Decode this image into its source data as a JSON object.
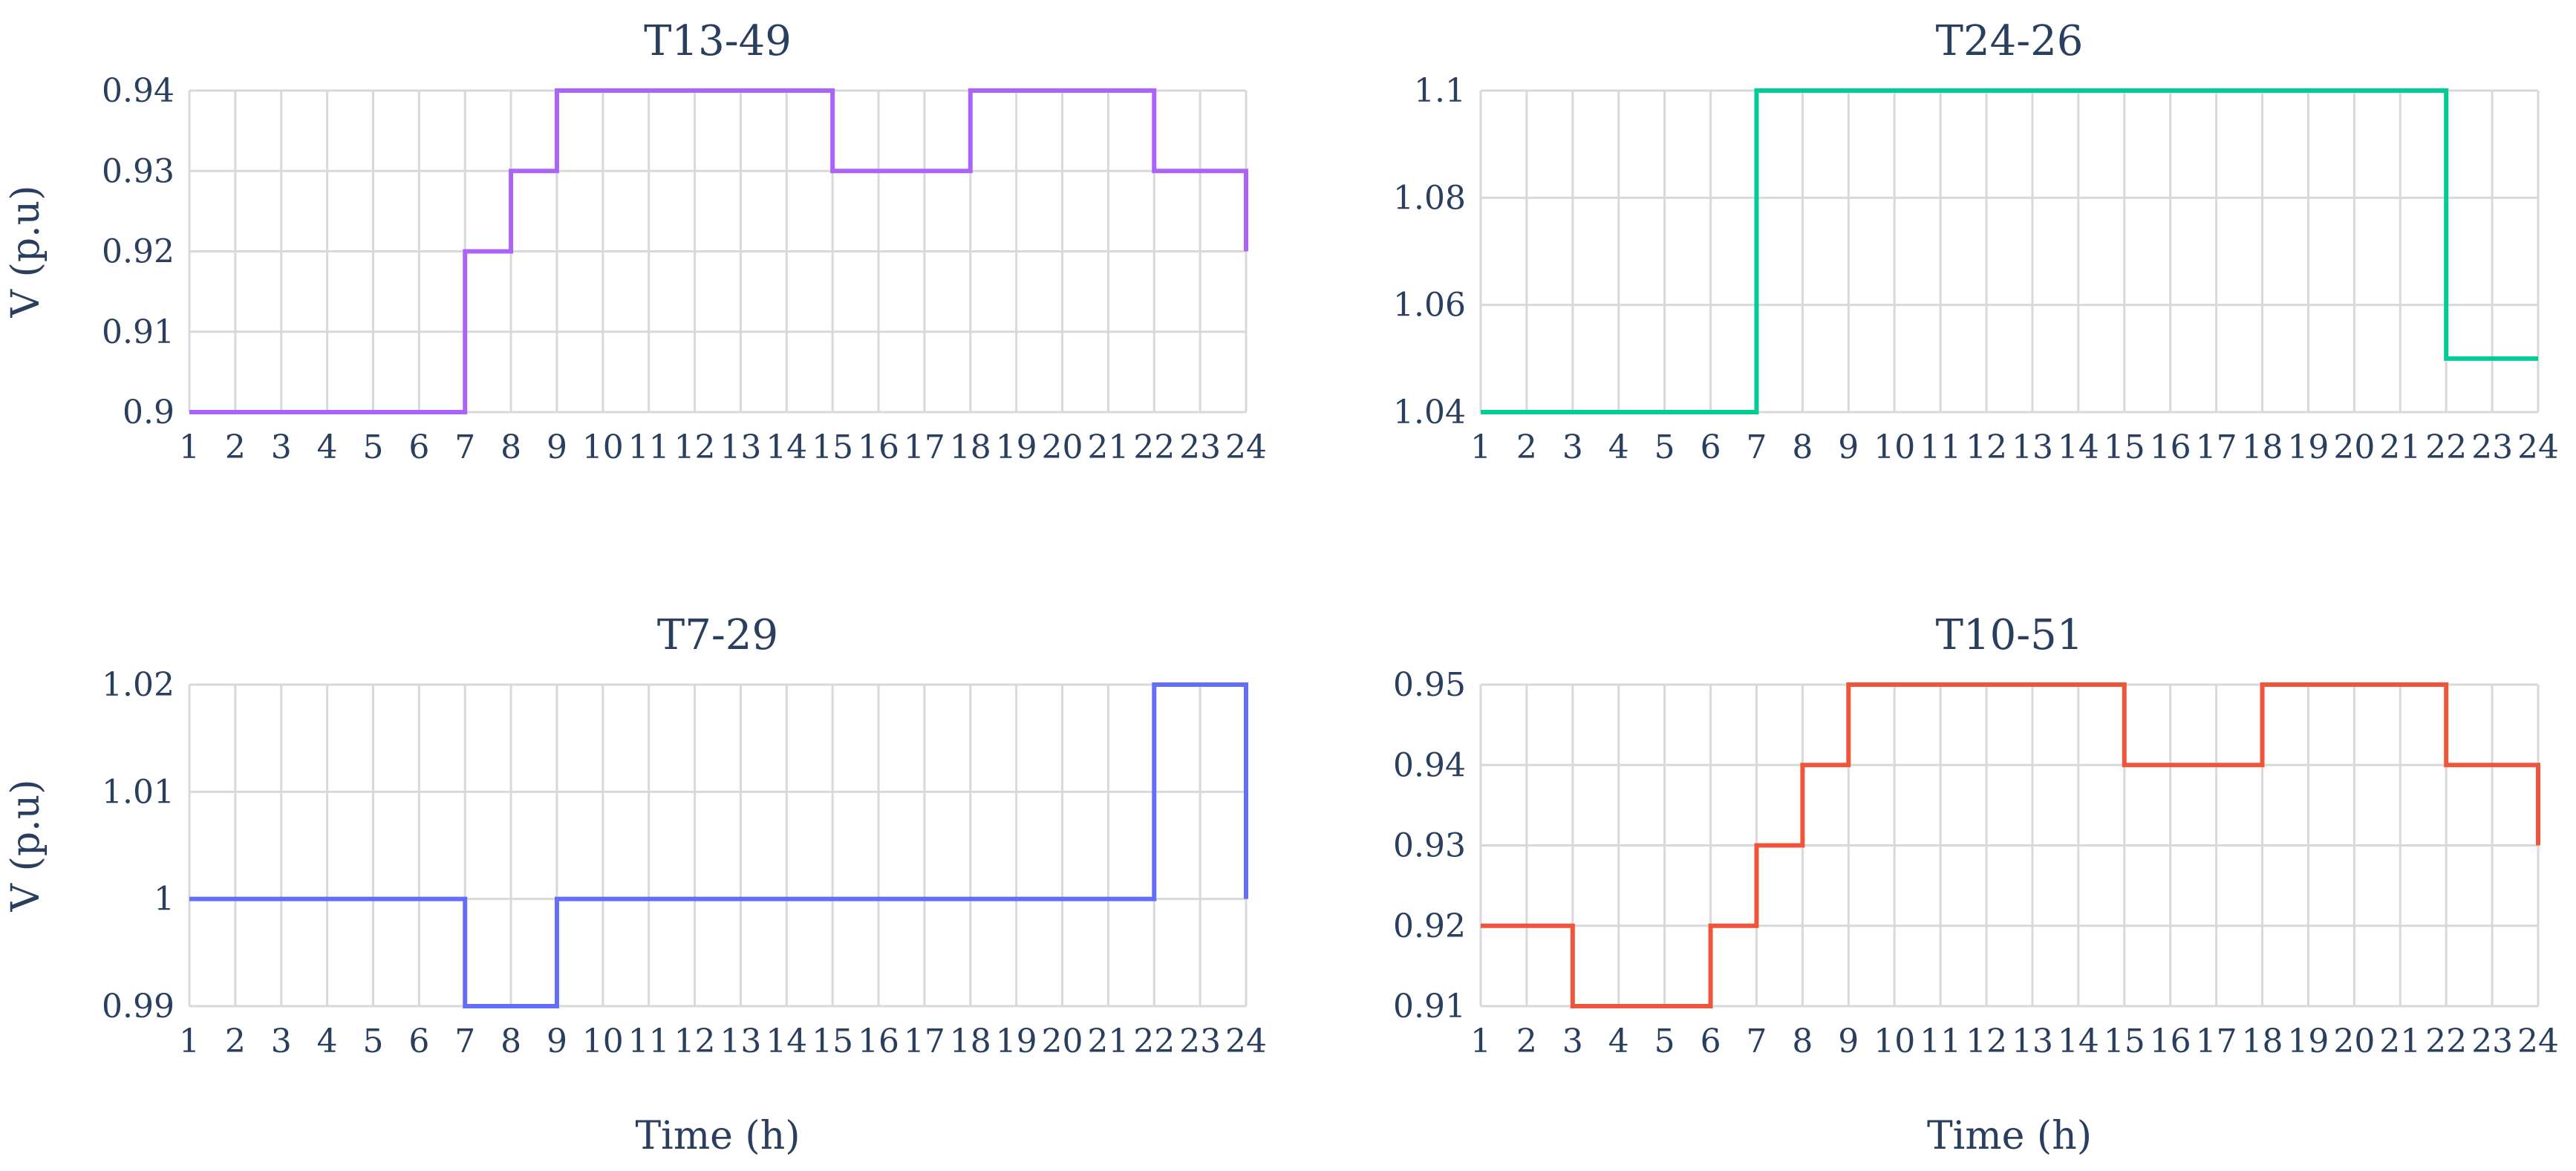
{
  "chart_data": [
    {
      "type": "line",
      "line_shape": "step",
      "title": "T13-49",
      "xlabel": "",
      "ylabel": "V (p.u)",
      "x": [
        1,
        2,
        3,
        4,
        5,
        6,
        7,
        8,
        9,
        10,
        11,
        12,
        13,
        14,
        15,
        16,
        17,
        18,
        19,
        20,
        21,
        22,
        23,
        24
      ],
      "xlim": [
        1,
        24
      ],
      "ylim": [
        0.9,
        0.94
      ],
      "yticks": [
        0.9,
        0.91,
        0.92,
        0.93,
        0.94
      ],
      "ytick_labels": [
        "0.9",
        "0.91",
        "0.92",
        "0.93",
        "0.94"
      ],
      "color": "#ab63fa",
      "grid": true,
      "series": [
        {
          "values": [
            0.9,
            0.9,
            0.9,
            0.9,
            0.9,
            0.9,
            0.92,
            0.93,
            0.94,
            0.94,
            0.94,
            0.94,
            0.94,
            0.94,
            0.93,
            0.93,
            0.93,
            0.94,
            0.94,
            0.94,
            0.94,
            0.93,
            0.93,
            0.92
          ]
        }
      ]
    },
    {
      "type": "line",
      "line_shape": "step",
      "title": "T24-26",
      "xlabel": "",
      "ylabel": "",
      "x": [
        1,
        2,
        3,
        4,
        5,
        6,
        7,
        8,
        9,
        10,
        11,
        12,
        13,
        14,
        15,
        16,
        17,
        18,
        19,
        20,
        21,
        22,
        23,
        24
      ],
      "xlim": [
        1,
        24
      ],
      "ylim": [
        1.04,
        1.1
      ],
      "yticks": [
        1.04,
        1.06,
        1.08,
        1.1
      ],
      "ytick_labels": [
        "1.04",
        "1.06",
        "1.08",
        "1.1"
      ],
      "color": "#00cc96",
      "grid": true,
      "series": [
        {
          "values": [
            1.04,
            1.04,
            1.04,
            1.04,
            1.04,
            1.04,
            1.1,
            1.1,
            1.1,
            1.1,
            1.1,
            1.1,
            1.1,
            1.1,
            1.1,
            1.1,
            1.1,
            1.1,
            1.1,
            1.1,
            1.1,
            1.05,
            1.05,
            1.05
          ]
        }
      ]
    },
    {
      "type": "line",
      "line_shape": "step",
      "title": "T7-29",
      "xlabel": "Time (h)",
      "ylabel": "V (p.u)",
      "x": [
        1,
        2,
        3,
        4,
        5,
        6,
        7,
        8,
        9,
        10,
        11,
        12,
        13,
        14,
        15,
        16,
        17,
        18,
        19,
        20,
        21,
        22,
        23,
        24
      ],
      "xlim": [
        1,
        24
      ],
      "ylim": [
        0.99,
        1.02
      ],
      "yticks": [
        0.99,
        1.0,
        1.01,
        1.02
      ],
      "ytick_labels": [
        "0.99",
        "1",
        "1.01",
        "1.02"
      ],
      "color": "#636efa",
      "grid": true,
      "series": [
        {
          "values": [
            1,
            1,
            1,
            1,
            1,
            1,
            0.99,
            0.99,
            1,
            1,
            1,
            1,
            1,
            1,
            1,
            1,
            1,
            1,
            1,
            1,
            1,
            1.02,
            1.02,
            1
          ]
        }
      ]
    },
    {
      "type": "line",
      "line_shape": "step",
      "title": "T10-51",
      "xlabel": "Time (h)",
      "ylabel": "",
      "x": [
        1,
        2,
        3,
        4,
        5,
        6,
        7,
        8,
        9,
        10,
        11,
        12,
        13,
        14,
        15,
        16,
        17,
        18,
        19,
        20,
        21,
        22,
        23,
        24
      ],
      "xlim": [
        1,
        24
      ],
      "ylim": [
        0.91,
        0.95
      ],
      "yticks": [
        0.91,
        0.92,
        0.93,
        0.94,
        0.95
      ],
      "ytick_labels": [
        "0.91",
        "0.92",
        "0.93",
        "0.94",
        "0.95"
      ],
      "color": "#ef553b",
      "grid": true,
      "series": [
        {
          "values": [
            0.92,
            0.92,
            0.91,
            0.91,
            0.91,
            0.92,
            0.93,
            0.94,
            0.95,
            0.95,
            0.95,
            0.95,
            0.95,
            0.95,
            0.94,
            0.94,
            0.94,
            0.95,
            0.95,
            0.95,
            0.95,
            0.94,
            0.94,
            0.93
          ]
        }
      ]
    }
  ]
}
